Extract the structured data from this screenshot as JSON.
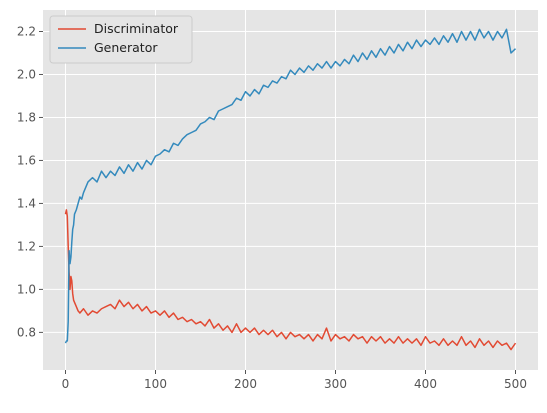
{
  "chart_data": {
    "type": "line",
    "title": "",
    "xlabel": "",
    "ylabel": "",
    "xlim": [
      -25,
      525
    ],
    "ylim": [
      0.625,
      2.3
    ],
    "x_ticks": [
      0,
      100,
      200,
      300,
      400,
      500
    ],
    "y_ticks": [
      0.8,
      1.0,
      1.2,
      1.4,
      1.6,
      1.8,
      2.0,
      2.2
    ],
    "grid": true,
    "legend_position": "top-left",
    "style": {
      "axes_facecolor": "#e5e5e5",
      "grid_color": "#ffffff",
      "tick_color": "#555555"
    },
    "series": [
      {
        "name": "Discriminator",
        "color": "#e24a33",
        "points": [
          [
            0,
            1.35
          ],
          [
            1,
            1.37
          ],
          [
            2,
            1.34
          ],
          [
            3,
            1.2
          ],
          [
            4,
            1.08
          ],
          [
            5,
            1.0
          ],
          [
            6,
            1.06
          ],
          [
            7,
            1.04
          ],
          [
            8,
            0.98
          ],
          [
            9,
            0.95
          ],
          [
            10,
            0.94
          ],
          [
            12,
            0.92
          ],
          [
            14,
            0.9
          ],
          [
            16,
            0.89
          ],
          [
            18,
            0.9
          ],
          [
            20,
            0.91
          ],
          [
            25,
            0.88
          ],
          [
            30,
            0.9
          ],
          [
            35,
            0.89
          ],
          [
            40,
            0.91
          ],
          [
            45,
            0.92
          ],
          [
            50,
            0.93
          ],
          [
            55,
            0.91
          ],
          [
            60,
            0.95
          ],
          [
            65,
            0.92
          ],
          [
            70,
            0.94
          ],
          [
            75,
            0.91
          ],
          [
            80,
            0.93
          ],
          [
            85,
            0.9
          ],
          [
            90,
            0.92
          ],
          [
            95,
            0.89
          ],
          [
            100,
            0.9
          ],
          [
            105,
            0.88
          ],
          [
            110,
            0.9
          ],
          [
            115,
            0.87
          ],
          [
            120,
            0.89
          ],
          [
            125,
            0.86
          ],
          [
            130,
            0.87
          ],
          [
            135,
            0.85
          ],
          [
            140,
            0.86
          ],
          [
            145,
            0.84
          ],
          [
            150,
            0.85
          ],
          [
            155,
            0.83
          ],
          [
            160,
            0.86
          ],
          [
            165,
            0.82
          ],
          [
            170,
            0.84
          ],
          [
            175,
            0.81
          ],
          [
            180,
            0.83
          ],
          [
            185,
            0.8
          ],
          [
            190,
            0.84
          ],
          [
            195,
            0.8
          ],
          [
            200,
            0.82
          ],
          [
            205,
            0.8
          ],
          [
            210,
            0.82
          ],
          [
            215,
            0.79
          ],
          [
            220,
            0.81
          ],
          [
            225,
            0.79
          ],
          [
            230,
            0.81
          ],
          [
            235,
            0.78
          ],
          [
            240,
            0.8
          ],
          [
            245,
            0.77
          ],
          [
            250,
            0.8
          ],
          [
            255,
            0.78
          ],
          [
            260,
            0.79
          ],
          [
            265,
            0.77
          ],
          [
            270,
            0.79
          ],
          [
            275,
            0.76
          ],
          [
            280,
            0.79
          ],
          [
            285,
            0.77
          ],
          [
            290,
            0.82
          ],
          [
            295,
            0.76
          ],
          [
            300,
            0.79
          ],
          [
            305,
            0.77
          ],
          [
            310,
            0.78
          ],
          [
            315,
            0.76
          ],
          [
            320,
            0.79
          ],
          [
            325,
            0.77
          ],
          [
            330,
            0.78
          ],
          [
            335,
            0.75
          ],
          [
            340,
            0.78
          ],
          [
            345,
            0.76
          ],
          [
            350,
            0.78
          ],
          [
            355,
            0.75
          ],
          [
            360,
            0.77
          ],
          [
            365,
            0.75
          ],
          [
            370,
            0.78
          ],
          [
            375,
            0.75
          ],
          [
            380,
            0.77
          ],
          [
            385,
            0.75
          ],
          [
            390,
            0.77
          ],
          [
            395,
            0.74
          ],
          [
            400,
            0.78
          ],
          [
            405,
            0.75
          ],
          [
            410,
            0.76
          ],
          [
            415,
            0.74
          ],
          [
            420,
            0.77
          ],
          [
            425,
            0.74
          ],
          [
            430,
            0.76
          ],
          [
            435,
            0.74
          ],
          [
            440,
            0.78
          ],
          [
            445,
            0.74
          ],
          [
            450,
            0.76
          ],
          [
            455,
            0.73
          ],
          [
            460,
            0.77
          ],
          [
            465,
            0.74
          ],
          [
            470,
            0.76
          ],
          [
            475,
            0.73
          ],
          [
            480,
            0.76
          ],
          [
            485,
            0.74
          ],
          [
            490,
            0.75
          ],
          [
            495,
            0.72
          ],
          [
            500,
            0.75
          ]
        ]
      },
      {
        "name": "Generator",
        "color": "#348abd",
        "points": [
          [
            0,
            0.75
          ],
          [
            1,
            0.76
          ],
          [
            2,
            0.76
          ],
          [
            3,
            0.85
          ],
          [
            4,
            1.18
          ],
          [
            5,
            1.12
          ],
          [
            6,
            1.15
          ],
          [
            7,
            1.22
          ],
          [
            8,
            1.28
          ],
          [
            9,
            1.3
          ],
          [
            10,
            1.35
          ],
          [
            12,
            1.37
          ],
          [
            14,
            1.4
          ],
          [
            16,
            1.43
          ],
          [
            18,
            1.42
          ],
          [
            20,
            1.45
          ],
          [
            25,
            1.5
          ],
          [
            30,
            1.52
          ],
          [
            35,
            1.5
          ],
          [
            40,
            1.55
          ],
          [
            45,
            1.52
          ],
          [
            50,
            1.55
          ],
          [
            55,
            1.53
          ],
          [
            60,
            1.57
          ],
          [
            65,
            1.54
          ],
          [
            70,
            1.58
          ],
          [
            75,
            1.55
          ],
          [
            80,
            1.59
          ],
          [
            85,
            1.56
          ],
          [
            90,
            1.6
          ],
          [
            95,
            1.58
          ],
          [
            100,
            1.62
          ],
          [
            105,
            1.63
          ],
          [
            110,
            1.65
          ],
          [
            115,
            1.64
          ],
          [
            120,
            1.68
          ],
          [
            125,
            1.67
          ],
          [
            130,
            1.7
          ],
          [
            135,
            1.72
          ],
          [
            140,
            1.73
          ],
          [
            145,
            1.74
          ],
          [
            150,
            1.77
          ],
          [
            155,
            1.78
          ],
          [
            160,
            1.8
          ],
          [
            165,
            1.79
          ],
          [
            170,
            1.83
          ],
          [
            175,
            1.84
          ],
          [
            180,
            1.85
          ],
          [
            185,
            1.86
          ],
          [
            190,
            1.89
          ],
          [
            195,
            1.88
          ],
          [
            200,
            1.92
          ],
          [
            205,
            1.9
          ],
          [
            210,
            1.93
          ],
          [
            215,
            1.91
          ],
          [
            220,
            1.95
          ],
          [
            225,
            1.94
          ],
          [
            230,
            1.97
          ],
          [
            235,
            1.96
          ],
          [
            240,
            1.99
          ],
          [
            245,
            1.98
          ],
          [
            250,
            2.02
          ],
          [
            255,
            2.0
          ],
          [
            260,
            2.03
          ],
          [
            265,
            2.01
          ],
          [
            270,
            2.04
          ],
          [
            275,
            2.02
          ],
          [
            280,
            2.05
          ],
          [
            285,
            2.03
          ],
          [
            290,
            2.06
          ],
          [
            295,
            2.03
          ],
          [
            300,
            2.06
          ],
          [
            305,
            2.04
          ],
          [
            310,
            2.07
          ],
          [
            315,
            2.05
          ],
          [
            320,
            2.09
          ],
          [
            325,
            2.06
          ],
          [
            330,
            2.1
          ],
          [
            335,
            2.07
          ],
          [
            340,
            2.11
          ],
          [
            345,
            2.08
          ],
          [
            350,
            2.12
          ],
          [
            355,
            2.09
          ],
          [
            360,
            2.13
          ],
          [
            365,
            2.1
          ],
          [
            370,
            2.14
          ],
          [
            375,
            2.11
          ],
          [
            380,
            2.15
          ],
          [
            385,
            2.12
          ],
          [
            390,
            2.16
          ],
          [
            395,
            2.13
          ],
          [
            400,
            2.16
          ],
          [
            405,
            2.14
          ],
          [
            410,
            2.17
          ],
          [
            415,
            2.14
          ],
          [
            420,
            2.18
          ],
          [
            425,
            2.15
          ],
          [
            430,
            2.19
          ],
          [
            435,
            2.15
          ],
          [
            440,
            2.2
          ],
          [
            445,
            2.16
          ],
          [
            450,
            2.2
          ],
          [
            455,
            2.16
          ],
          [
            460,
            2.21
          ],
          [
            465,
            2.17
          ],
          [
            470,
            2.2
          ],
          [
            475,
            2.16
          ],
          [
            480,
            2.2
          ],
          [
            485,
            2.17
          ],
          [
            490,
            2.21
          ],
          [
            495,
            2.1
          ],
          [
            500,
            2.12
          ]
        ]
      }
    ]
  }
}
